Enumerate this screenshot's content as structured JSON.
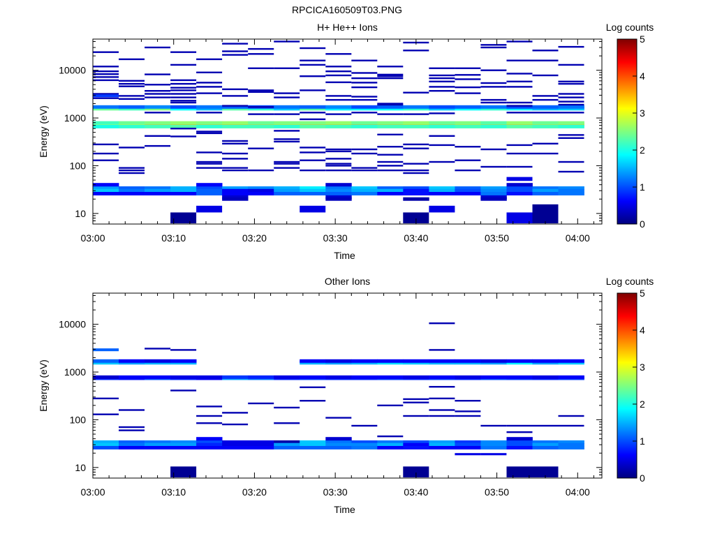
{
  "figure_title": "RPCICA160509T03.PNG",
  "colormap": [
    "#00007f",
    "#0000ff",
    "#007fff",
    "#00ffff",
    "#7fff7f",
    "#ffff00",
    "#ff7f00",
    "#ff0000",
    "#7f0000"
  ],
  "chart_data": [
    {
      "type": "heatmap",
      "title": "H+ He++ Ions",
      "xlabel": "Time",
      "ylabel": "Energy (eV)",
      "colorbar_label": "Log counts",
      "x_ticks": [
        "03:00",
        "03:10",
        "03:20",
        "03:30",
        "03:40",
        "03:50",
        "04:00"
      ],
      "x_tick_minutes": [
        0,
        10,
        20,
        30,
        40,
        50,
        60
      ],
      "xlim_minutes": [
        0,
        63
      ],
      "x_bins_minutes": [
        0,
        3.2,
        6.4,
        9.6,
        12.8,
        16,
        19.2,
        22.4,
        25.6,
        28.8,
        32,
        35.2,
        38.4,
        41.6,
        44.8,
        48,
        51.2,
        54.4,
        57.6,
        60.8
      ],
      "y_scale": "log",
      "ylim": [
        6,
        45000
      ],
      "y_ticks": [
        "10",
        "100",
        "1000",
        "10000"
      ],
      "y_tick_values": [
        10,
        100,
        1000,
        10000
      ],
      "colorbar_range": [
        0,
        5
      ],
      "colorbar_ticks": [
        "0",
        "1",
        "2",
        "3",
        "4",
        "5"
      ],
      "continuous_bands": [
        {
          "energy": 720,
          "levels": [
            3.0,
            3.2,
            3.6,
            3.7,
            3.6,
            3.6,
            3.5,
            3.4,
            3.6,
            3.6,
            3.7,
            3.6,
            3.5,
            3.6,
            3.4,
            3.5,
            3.6,
            3.4,
            3.5
          ]
        },
        {
          "energy": 790,
          "levels": [
            2.2,
            2.4,
            2.5,
            2.6,
            2.5,
            2.6,
            2.4,
            2.5,
            2.5,
            2.6,
            2.4,
            2.5,
            2.6,
            2.4,
            2.5,
            2.3,
            2.6,
            2.4,
            2.5
          ]
        },
        {
          "energy": 660,
          "levels": [
            2.0,
            2.1,
            2.2,
            2.3,
            2.1,
            2.2,
            2.2,
            2.1,
            2.3,
            2.2,
            2.1,
            2.2,
            2.2,
            2.1,
            2.2,
            2.1,
            2.3,
            2.2,
            2.1
          ]
        },
        {
          "energy": 1560,
          "levels": [
            2.4,
            2.2,
            2.5,
            1.9,
            1.5,
            2.3,
            2.1,
            1.6,
            2.3,
            1.8,
            1.9,
            1.9,
            2.1,
            1.6,
            1.9,
            2.1,
            1.8,
            1.5,
            1.6
          ]
        },
        {
          "energy": 1700,
          "levels": [
            1.2,
            1.1,
            1.3,
            1.0,
            1.2,
            1.1,
            1.0,
            1.2,
            1.1,
            1.3,
            1.0,
            1.1,
            1.2,
            1.0,
            1.1,
            1.2,
            1.0,
            1.1,
            1.2
          ]
        },
        {
          "energy": 34,
          "levels": [
            1.4,
            1.1,
            1.2,
            1.5,
            1.0,
            1.4,
            1.3,
            1.5,
            1.8,
            1.2,
            1.6,
            1.1,
            1.0,
            1.6,
            1.1,
            1.4,
            1.0,
            1.2,
            1.3
          ]
        },
        {
          "energy": 30,
          "levels": [
            1.6,
            1.2,
            1.4,
            1.5,
            1.1,
            0.6,
            0.5,
            1.4,
            1.6,
            1.3,
            1.5,
            1.5,
            0.7,
            1.5,
            1.0,
            1.3,
            1.0,
            1.4,
            1.2
          ]
        },
        {
          "energy": 26,
          "levels": [
            0.6,
            0.6,
            0.6,
            0.6,
            1.1,
            0.6,
            0.6,
            1.1,
            1.1,
            1.1,
            1.2,
            0.6,
            0.7,
            0.6,
            0.6,
            1.2,
            0.7,
            1.1,
            1.2
          ]
        },
        {
          "energy": 40,
          "levels": [
            0.6,
            0,
            0,
            0,
            0.6,
            0,
            0,
            0,
            0,
            0.4,
            0,
            0,
            0,
            0,
            0,
            0,
            0.4,
            0,
            0
          ]
        },
        {
          "energy": 22,
          "levels": [
            0,
            0,
            0,
            0,
            0,
            0.4,
            0,
            0,
            0,
            0.4,
            0,
            0,
            0,
            0,
            0,
            0.4,
            0,
            0,
            0
          ]
        },
        {
          "energy": 20,
          "levels": [
            0,
            0,
            0,
            0,
            0,
            0.3,
            0,
            0,
            0,
            0.3,
            0,
            0,
            0.2,
            0,
            0,
            0.3,
            0,
            0,
            0
          ]
        }
      ],
      "low_energy_blocks": [
        {
          "col": 3,
          "e_low": 6.2,
          "e_high": 10.5,
          "level": 0.1
        },
        {
          "col": 4,
          "e_low": 10.5,
          "e_high": 14.5,
          "level": 0.5
        },
        {
          "col": 8,
          "e_low": 10.5,
          "e_high": 14.5,
          "level": 0.5
        },
        {
          "col": 12,
          "e_low": 6.2,
          "e_high": 10.5,
          "level": 0.1
        },
        {
          "col": 13,
          "e_low": 10.5,
          "e_high": 14.5,
          "level": 0.5
        },
        {
          "col": 16,
          "e_low": 6.2,
          "e_high": 10.5,
          "level": 0.5
        },
        {
          "col": 17,
          "e_low": 6.2,
          "e_high": 15.5,
          "level": 0.1
        },
        {
          "col": 16,
          "e_low": 48,
          "e_high": 58,
          "level": 0.5
        }
      ],
      "sparse_events": [
        {
          "col": 0,
          "energies": [
            24000,
            12000,
            9500,
            8300,
            7200,
            6200,
            3200,
            2600,
            180,
            280,
            130
          ]
        },
        {
          "col": 0,
          "energies": [
            3000
          ],
          "level": 0.9
        },
        {
          "col": 1,
          "energies": [
            17000,
            6000,
            5200,
            4600,
            2900,
            2500,
            240,
            90,
            80,
            70
          ]
        },
        {
          "col": 2,
          "energies": [
            30000,
            8200,
            5000,
            3700,
            3200,
            2700,
            1300,
            260,
            420
          ]
        },
        {
          "col": 3,
          "energies": [
            24000,
            13000,
            6200,
            5200,
            4300,
            3800,
            3200,
            2700,
            2300,
            2100,
            410,
            600
          ]
        },
        {
          "col": 4,
          "energies": [
            17000,
            9000,
            5500,
            4500,
            3300,
            1300,
            520,
            480,
            190,
            120,
            110,
            90
          ]
        },
        {
          "col": 5,
          "energies": [
            36000,
            25000,
            21000,
            4000,
            2900,
            1800,
            330,
            290,
            180,
            140,
            90,
            80
          ]
        },
        {
          "col": 6,
          "energies": [
            28000,
            22000,
            11000,
            3800,
            3500,
            1700,
            1200,
            230,
            80
          ]
        },
        {
          "col": 7,
          "energies": [
            40000,
            11000,
            3300,
            2700,
            1200,
            540,
            360,
            320,
            120,
            110,
            90
          ]
        },
        {
          "col": 8,
          "energies": [
            29000,
            16000,
            13000,
            7500,
            3800,
            1300,
            940,
            240,
            190,
            130,
            80
          ]
        },
        {
          "col": 9,
          "energies": [
            22000,
            12000,
            9500,
            7800,
            5600,
            2900,
            2400,
            1200,
            220,
            200,
            140,
            110,
            100,
            80
          ]
        },
        {
          "col": 10,
          "energies": [
            16000,
            8800,
            6800,
            5500,
            4400,
            2800,
            2400,
            1300,
            220,
            180,
            90,
            80
          ]
        },
        {
          "col": 11,
          "energies": [
            12000,
            8100,
            7500,
            6800,
            2000,
            1900,
            1200,
            450,
            250,
            170,
            120,
            100,
            80
          ]
        },
        {
          "col": 12,
          "energies": [
            38000,
            26000,
            3400,
            1200,
            280,
            230,
            110,
            80,
            70
          ]
        },
        {
          "col": 13,
          "energies": [
            11000,
            7800,
            6800,
            5800,
            4500,
            3700,
            1250,
            420,
            270,
            120
          ]
        },
        {
          "col": 14,
          "energies": [
            11000,
            8000,
            6500,
            4400,
            3300,
            250,
            130,
            80
          ]
        },
        {
          "col": 15,
          "energies": [
            34000,
            30000,
            10000,
            5400,
            4500,
            2400,
            2100,
            220,
            95
          ]
        },
        {
          "col": 16,
          "energies": [
            40000,
            16000,
            8500,
            5800,
            4500,
            2100,
            1800,
            1300,
            270,
            180,
            95
          ]
        },
        {
          "col": 17,
          "energies": [
            26000,
            16000,
            7800,
            2900,
            2400,
            1300,
            290,
            180
          ]
        },
        {
          "col": 18,
          "energies": [
            31000,
            13000,
            5800,
            5200,
            3200,
            2700,
            2200,
            1900,
            1300,
            440,
            380,
            120,
            75
          ]
        }
      ]
    },
    {
      "type": "heatmap",
      "title": "Other Ions",
      "xlabel": "Time",
      "ylabel": "Energy (eV)",
      "colorbar_label": "Log counts",
      "x_ticks": [
        "03:00",
        "03:10",
        "03:20",
        "03:30",
        "03:40",
        "03:50",
        "04:00"
      ],
      "x_tick_minutes": [
        0,
        10,
        20,
        30,
        40,
        50,
        60
      ],
      "xlim_minutes": [
        0,
        63
      ],
      "x_bins_minutes": [
        0,
        3.2,
        6.4,
        9.6,
        12.8,
        16,
        19.2,
        22.4,
        25.6,
        28.8,
        32,
        35.2,
        38.4,
        41.6,
        44.8,
        48,
        51.2,
        54.4,
        57.6,
        60.8
      ],
      "y_scale": "log",
      "ylim": [
        6,
        45000
      ],
      "y_ticks": [
        "10",
        "100",
        "1000",
        "10000"
      ],
      "y_tick_values": [
        10,
        100,
        1000,
        10000
      ],
      "colorbar_range": [
        0,
        5
      ],
      "colorbar_ticks": [
        "0",
        "1",
        "2",
        "3",
        "4",
        "5"
      ],
      "continuous_bands": [
        {
          "energy": 740,
          "levels": [
            0.8,
            0.7,
            1.0,
            0.8,
            0.6,
            1.4,
            1.2,
            0.8,
            0.9,
            0.8,
            0.8,
            0.9,
            0.8,
            0.9,
            0.8,
            1.0,
            0.9,
            0.8,
            0.9
          ]
        },
        {
          "energy": 780,
          "levels": [
            0.4,
            0.6,
            0.6,
            0.5,
            0.5,
            0.9,
            0.8,
            0.5,
            0.6,
            0.5,
            0.6,
            0.6,
            0.5,
            0.6,
            0.5,
            0.6,
            0.6,
            0.5,
            0.6
          ]
        },
        {
          "energy": 1560,
          "levels": [
            1.6,
            1.4,
            1.5,
            1.5,
            0,
            0,
            0,
            0,
            1.5,
            1.4,
            1.5,
            1.7,
            1.6,
            1.5,
            1.5,
            1.4,
            1.8,
            1.4,
            1.6
          ]
        },
        {
          "energy": 1700,
          "levels": [
            1.1,
            0.6,
            0.5,
            0.6,
            0,
            0,
            0,
            0,
            0.6,
            0.5,
            0.6,
            0.6,
            0.6,
            0.6,
            0.6,
            0.5,
            0.6,
            0.6,
            0.6
          ]
        },
        {
          "energy": 34,
          "levels": [
            1.5,
            1.1,
            1.2,
            1.3,
            1.0,
            0.5,
            0.5,
            0.2,
            1.6,
            1.2,
            1.0,
            1.2,
            1.0,
            1.4,
            0.9,
            1.3,
            1.0,
            1.2,
            1.3
          ]
        },
        {
          "energy": 30,
          "levels": [
            1.6,
            1.2,
            1.4,
            1.4,
            0.8,
            0.5,
            0.5,
            1.4,
            1.6,
            1.3,
            1.3,
            1.5,
            0.6,
            1.5,
            1.0,
            1.3,
            1.0,
            1.4,
            1.2
          ]
        },
        {
          "energy": 26,
          "levels": [
            1.0,
            0.6,
            0.6,
            0.6,
            0.6,
            0.6,
            0.6,
            1.1,
            1.1,
            1.1,
            1.2,
            0.6,
            0.7,
            0.6,
            0.6,
            1.2,
            0.7,
            1.1,
            1.2
          ]
        },
        {
          "energy": 40,
          "levels": [
            0,
            0,
            0,
            0,
            0.6,
            0,
            0,
            0,
            0,
            0.4,
            0,
            0,
            0,
            0,
            0,
            0,
            0.4,
            0,
            0
          ]
        },
        {
          "energy": 22,
          "levels": [
            0,
            0,
            0,
            0,
            0,
            0,
            0,
            0,
            0,
            0,
            0,
            0,
            0,
            0,
            0,
            0,
            0,
            0,
            0
          ]
        }
      ],
      "low_energy_blocks": [
        {
          "col": 3,
          "e_low": 6.2,
          "e_high": 10.5,
          "level": 0.1
        },
        {
          "col": 12,
          "e_low": 6.2,
          "e_high": 10.5,
          "level": 0.1
        },
        {
          "col": 16,
          "e_low": 6.2,
          "e_high": 10.5,
          "level": 0.1
        },
        {
          "col": 17,
          "e_low": 6.2,
          "e_high": 10.5,
          "level": 0.1
        },
        {
          "col": 14,
          "e_low": 18,
          "e_high": 20,
          "level": 0.5
        },
        {
          "col": 15,
          "e_low": 18,
          "e_high": 20,
          "level": 0.5
        }
      ],
      "sparse_events": [
        {
          "col": 0,
          "energies": [
            3000
          ],
          "level": 1.1
        },
        {
          "col": 0,
          "energies": [
            280,
            130
          ]
        },
        {
          "col": 1,
          "energies": [
            160,
            70,
            60
          ]
        },
        {
          "col": 2,
          "energies": [
            3100
          ]
        },
        {
          "col": 3,
          "energies": [
            2900,
            410
          ]
        },
        {
          "col": 4,
          "energies": [
            190,
            120,
            85
          ]
        },
        {
          "col": 5,
          "energies": [
            140,
            80
          ]
        },
        {
          "col": 6,
          "energies": [
            220
          ]
        },
        {
          "col": 7,
          "energies": [
            180,
            85
          ]
        },
        {
          "col": 8,
          "energies": [
            480,
            250
          ]
        },
        {
          "col": 9,
          "energies": [
            110
          ]
        },
        {
          "col": 10,
          "energies": [
            75
          ]
        },
        {
          "col": 11,
          "energies": [
            200,
            45
          ]
        },
        {
          "col": 12,
          "energies": [
            270,
            230,
            120
          ]
        },
        {
          "col": 13,
          "energies": [
            10500,
            2900,
            490,
            280,
            160,
            120
          ]
        },
        {
          "col": 14,
          "energies": [
            250,
            150,
            120
          ]
        },
        {
          "col": 15,
          "energies": [
            75
          ]
        },
        {
          "col": 16,
          "energies": [
            75,
            55
          ]
        },
        {
          "col": 17,
          "energies": [
            75
          ]
        },
        {
          "col": 18,
          "energies": [
            120,
            75
          ]
        }
      ]
    }
  ]
}
